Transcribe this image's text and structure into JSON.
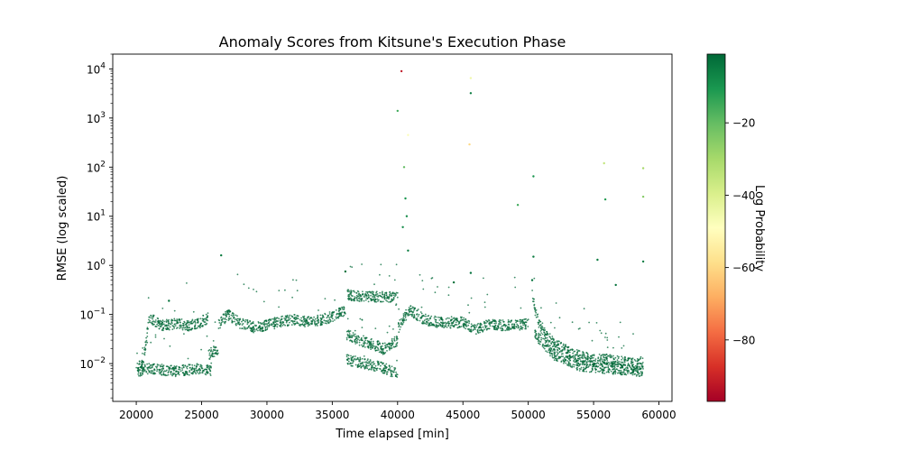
{
  "chart_data": {
    "type": "scatter",
    "title": "Anomaly Scores from Kitsune's Execution Phase",
    "xlabel": "Time elapsed [min]",
    "ylabel": "RMSE (log scaled)",
    "xlim": [
      18200,
      61000
    ],
    "ylim": [
      0.0017,
      20000
    ],
    "yscale": "log",
    "xticks": [
      20000,
      25000,
      30000,
      35000,
      40000,
      45000,
      50000,
      55000,
      60000
    ],
    "yticks": [
      {
        "value": 0.01,
        "label": "10",
        "exp": "−2"
      },
      {
        "value": 0.1,
        "label": "10",
        "exp": "−1"
      },
      {
        "value": 1,
        "label": "10",
        "exp": "0"
      },
      {
        "value": 10,
        "label": "10",
        "exp": "1"
      },
      {
        "value": 100,
        "label": "10",
        "exp": "2"
      },
      {
        "value": 1000,
        "label": "10",
        "exp": "3"
      },
      {
        "value": 10000,
        "label": "10",
        "exp": "4"
      }
    ],
    "grid": false,
    "colorbar": {
      "label": "Log Probability",
      "colormap": "RdYlGn",
      "range": [
        -97,
        -1
      ],
      "ticks": [
        -20,
        -40,
        -60,
        -80
      ],
      "tick_labels": [
        "−20",
        "−40",
        "−60",
        "−80"
      ]
    },
    "baseline_segments": [
      {
        "x": [
          20000,
          20500,
          21000,
          22000,
          23000,
          24000,
          25000,
          25500
        ],
        "y": [
          0.008,
          0.01,
          0.085,
          0.06,
          0.065,
          0.06,
          0.07,
          0.085
        ]
      },
      {
        "x": [
          20100,
          21000,
          23000,
          25000,
          25800
        ],
        "y": [
          0.007,
          0.008,
          0.007,
          0.008,
          0.007
        ]
      },
      {
        "x": [
          25500,
          26000,
          26300
        ],
        "y": [
          0.015,
          0.018,
          0.02
        ]
      },
      {
        "x": [
          26300,
          27000,
          28000,
          29000,
          30000,
          31000,
          32000,
          33000,
          34000,
          35000,
          36000
        ],
        "y": [
          0.06,
          0.1,
          0.065,
          0.055,
          0.06,
          0.07,
          0.08,
          0.07,
          0.075,
          0.09,
          0.12
        ]
      },
      {
        "x": [
          36100,
          37000,
          38000,
          39000,
          40000
        ],
        "y": [
          0.25,
          0.24,
          0.23,
          0.23,
          0.22
        ]
      },
      {
        "x": [
          36100,
          37000,
          38000,
          39000,
          40000
        ],
        "y": [
          0.04,
          0.03,
          0.025,
          0.02,
          0.03
        ]
      },
      {
        "x": [
          36100,
          37500,
          39000,
          40000
        ],
        "y": [
          0.012,
          0.01,
          0.008,
          0.006
        ]
      },
      {
        "x": [
          40000,
          40500,
          41000,
          42000,
          43000,
          44000,
          45000,
          46000,
          47000,
          48000,
          49000,
          50000
        ],
        "y": [
          0.05,
          0.09,
          0.12,
          0.08,
          0.07,
          0.065,
          0.07,
          0.05,
          0.065,
          0.06,
          0.06,
          0.065
        ]
      },
      {
        "x": [
          50300,
          50600,
          51000,
          52000,
          53000,
          54000,
          55000,
          56000,
          57000,
          58000,
          58800
        ],
        "y": [
          0.25,
          0.1,
          0.05,
          0.025,
          0.018,
          0.014,
          0.012,
          0.012,
          0.011,
          0.01,
          0.01
        ]
      },
      {
        "x": [
          50500,
          52000,
          54000,
          56000,
          58800
        ],
        "y": [
          0.04,
          0.015,
          0.009,
          0.008,
          0.007
        ]
      }
    ],
    "points": [
      {
        "x": 40300,
        "y": 9000,
        "logp": -92
      },
      {
        "x": 45600,
        "y": 6500,
        "logp": -45
      },
      {
        "x": 45600,
        "y": 3200,
        "logp": -5
      },
      {
        "x": 40000,
        "y": 1400,
        "logp": -15
      },
      {
        "x": 40800,
        "y": 450,
        "logp": -48
      },
      {
        "x": 45500,
        "y": 290,
        "logp": -60
      },
      {
        "x": 55800,
        "y": 120,
        "logp": -35
      },
      {
        "x": 58800,
        "y": 95,
        "logp": -30
      },
      {
        "x": 40500,
        "y": 100,
        "logp": -20
      },
      {
        "x": 50400,
        "y": 65,
        "logp": -10
      },
      {
        "x": 58800,
        "y": 25,
        "logp": -25
      },
      {
        "x": 40600,
        "y": 23,
        "logp": -10
      },
      {
        "x": 55900,
        "y": 22,
        "logp": -12
      },
      {
        "x": 49200,
        "y": 17,
        "logp": -15
      },
      {
        "x": 40700,
        "y": 10,
        "logp": -8
      },
      {
        "x": 40400,
        "y": 6,
        "logp": -8
      },
      {
        "x": 40800,
        "y": 2,
        "logp": -5
      },
      {
        "x": 26500,
        "y": 1.6,
        "logp": -5
      },
      {
        "x": 50400,
        "y": 1.5,
        "logp": -5
      },
      {
        "x": 55300,
        "y": 1.3,
        "logp": -5
      },
      {
        "x": 58800,
        "y": 1.2,
        "logp": -5
      },
      {
        "x": 45600,
        "y": 0.7,
        "logp": -3
      },
      {
        "x": 36000,
        "y": 0.75,
        "logp": -3
      },
      {
        "x": 50300,
        "y": 0.5,
        "logp": -3
      },
      {
        "x": 44300,
        "y": 0.45,
        "logp": -3
      },
      {
        "x": 56700,
        "y": 0.4,
        "logp": -3
      },
      {
        "x": 22500,
        "y": 0.19,
        "logp": -3
      }
    ]
  }
}
